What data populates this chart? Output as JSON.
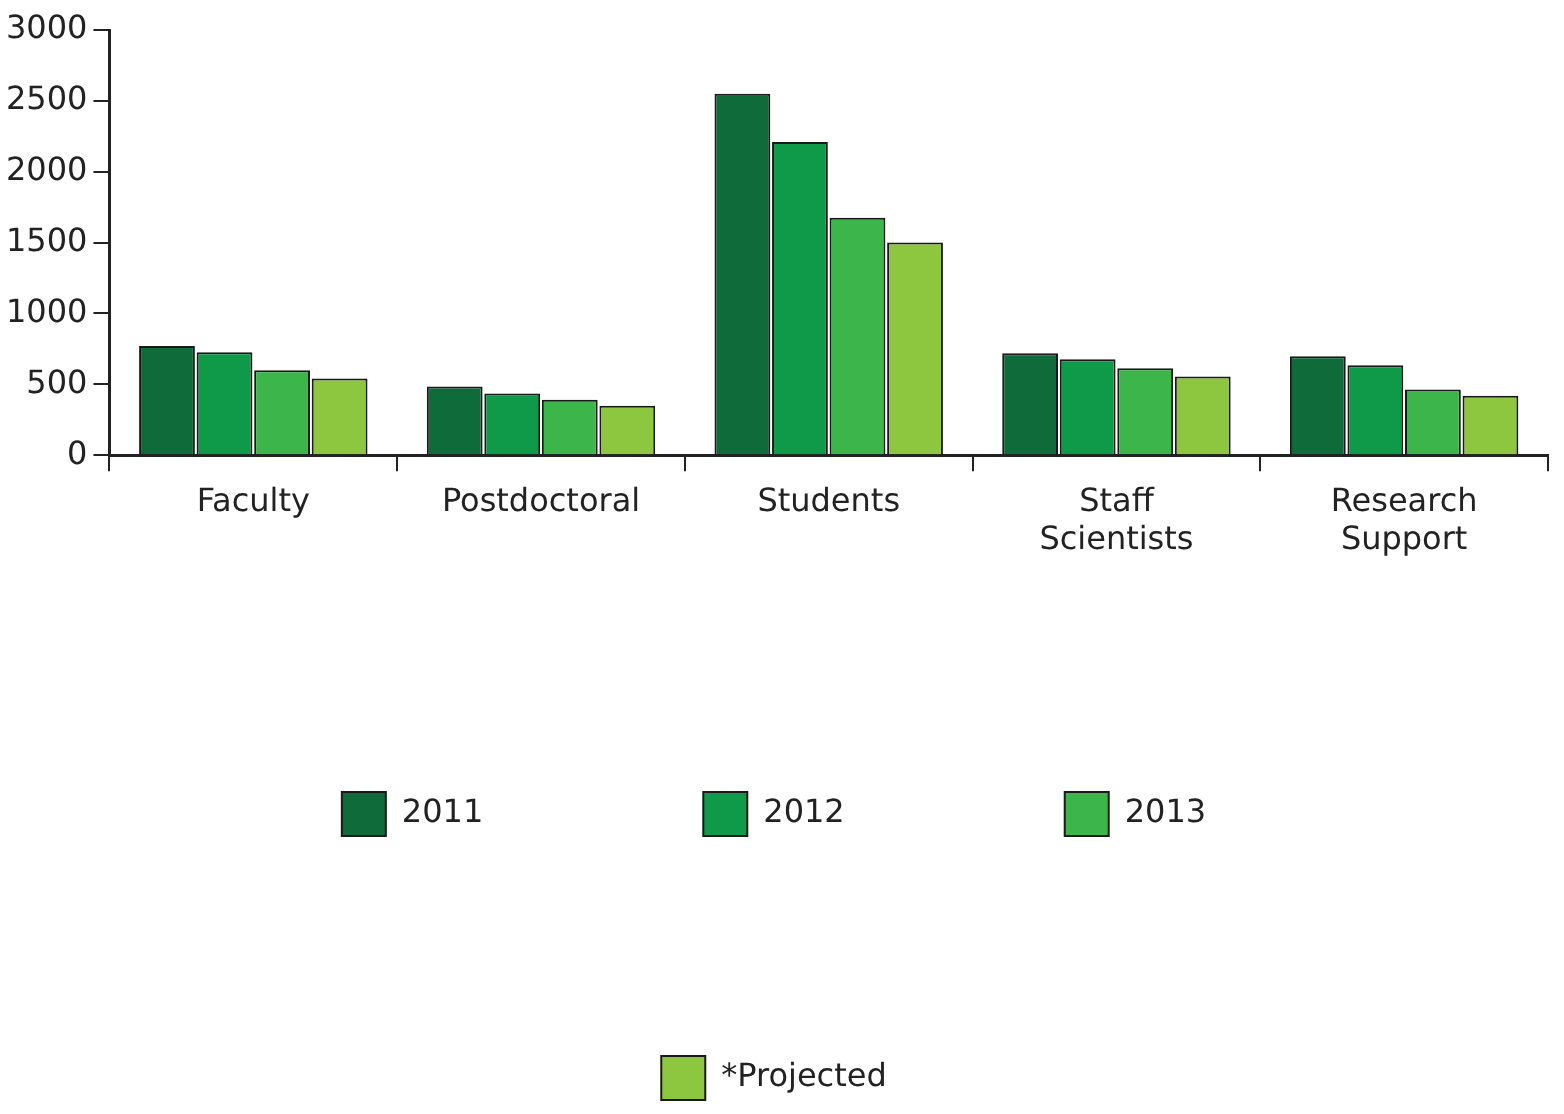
{
  "chart_data": {
    "type": "bar",
    "categories": [
      "Faculty",
      "Postdoctoral",
      "Students",
      "Staff Scientists",
      "Research Support"
    ],
    "series": [
      {
        "name": "2011",
        "color": "#0f6b3a",
        "values": [
          770,
          485,
          2550,
          720,
          698
        ]
      },
      {
        "name": "2012",
        "color": "#0e9a48",
        "values": [
          727,
          435,
          2210,
          677,
          634
        ]
      },
      {
        "name": "2013",
        "color": "#3cb54a",
        "values": [
          599,
          392,
          1675,
          613,
          463
        ]
      },
      {
        "name": "*Projected",
        "color": "#8dc63f",
        "values": [
          542,
          349,
          1500,
          556,
          420
        ]
      }
    ],
    "ylim": [
      0,
      3000
    ],
    "yticks": [
      0,
      500,
      1000,
      1500,
      2000,
      2500,
      3000
    ],
    "grid": false,
    "legend": "bottom"
  }
}
